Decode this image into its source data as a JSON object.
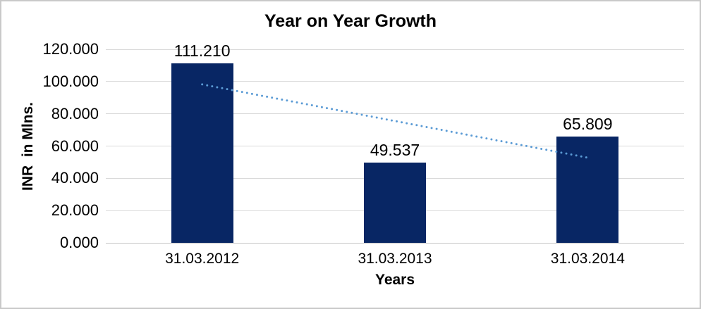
{
  "chart_data": {
    "type": "bar",
    "title": "Year on Year Growth",
    "categories": [
      "31.03.2012",
      "31.03.2013",
      "31.03.2014"
    ],
    "values": [
      111.21,
      49.537,
      65.809
    ],
    "value_labels": [
      "111.210",
      "49.537",
      "65.809"
    ],
    "xlabel": "Years",
    "ylabel": "INR  in Mlns.",
    "ylim": [
      0,
      120
    ],
    "ytick_step": 20,
    "ytick_labels": [
      "0.000",
      "20.000",
      "40.000",
      "60.000",
      "80.000",
      "100.000",
      "120.000"
    ],
    "grid": true,
    "legend": false,
    "trendline": {
      "type": "linear",
      "style": "dotted"
    },
    "colors": {
      "bar": "#082664",
      "trendline": "#5B9BD5",
      "gridline": "#D9D9D9",
      "axis_line": "#C6C6C6",
      "border": "#C9C9C9",
      "text": "#000000",
      "background": "#FFFFFF"
    }
  }
}
